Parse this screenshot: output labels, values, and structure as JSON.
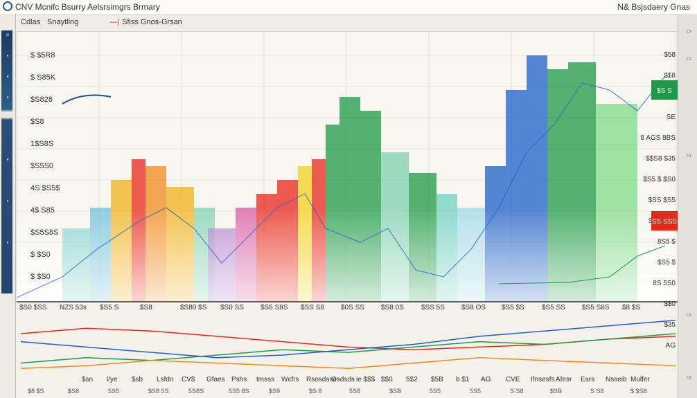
{
  "window": {
    "title": "CNV Mcnifc Bsurry Aelsrsimgrs Brmary",
    "title_right": "N& Bsjsdaery Gnas"
  },
  "toolbar": {
    "item1": "Cdlas",
    "item2": "Snaytling",
    "item3": "Sfiss Gnos-Grsan"
  },
  "colors": {
    "red": "#e8261a",
    "orange": "#f28a1c",
    "yellow": "#f4d21b",
    "green": "#1e9a46",
    "blue": "#1d5fc8",
    "purple": "#9a4fc2",
    "lightgreen": "#7fd98a",
    "teal": "#6fcfc0"
  },
  "chart_data": {
    "type": "area",
    "y_tick_labels": [
      "$ $5R8",
      "$ S85K",
      "$S828",
      "$S8",
      "1$S8S",
      "$S5S0",
      "4S $S5$",
      "4$ S85",
      "$S5S8S",
      "$ $S0",
      "$ $S0"
    ],
    "right_tick_labels": [
      "$58",
      "$$8",
      "$$S",
      "SE",
      "8 AGS 8BS",
      "$$S8 $35",
      "$S5 $ $S0",
      "$SS $S5",
      "SS3 $3S",
      "8S5 $",
      "$S5 $",
      "8S 5S0",
      "$$0",
      "$35",
      "AG"
    ],
    "right_badges": [
      "$S S",
      "SS SSS"
    ],
    "x_tick_labels_upper": [
      "$S0 $SS",
      "NZS 53s",
      "$S5 S",
      "$S8",
      "$S80 $S",
      "$S0 SS",
      "$S5 S8S",
      "$SS S8",
      "$0S SS",
      "$S8 0S",
      "$SS 5S",
      "$S8 OS",
      "$S5 $S",
      "$S5 SS",
      "$S5 S8S",
      "$8 $S"
    ],
    "x_tick_labels_lower": [
      "$8 $S",
      "$S8",
      "5S5",
      "$S8 5S",
      "5S8S",
      "5S5 8S",
      "$S9",
      "$S 8",
      "5S8",
      "$SB",
      "5S5",
      "5S5",
      "S S8",
      "$SB",
      "S S8",
      "$ $S8"
    ],
    "lower_labels": [
      "$sn",
      "l/ye",
      "$sb",
      "Lsfdn",
      "CV$",
      "Gfaes",
      "Pshs",
      "tmsss",
      "Wcfrs",
      "Rsosdsse",
      "Osdsds",
      "ie $$$",
      "$$0",
      "5$2",
      "$5B",
      "b $1",
      "AG",
      "CVE",
      "Ifnsesfs",
      "Afesr",
      "Esrs",
      "Nsseib",
      "Mulfer"
    ],
    "series": [
      {
        "name": "",
        "color": "#e8261a",
        "x": [
          0,
          1,
          2,
          3,
          4,
          5,
          6,
          7,
          8,
          9,
          10
        ],
        "values": [
          23,
          25,
          24,
          22,
          20,
          18,
          17,
          18,
          19,
          21,
          22
        ]
      },
      {
        "name": "",
        "color": "#1e9a46",
        "x": [
          0,
          1,
          2,
          3,
          4,
          5,
          6,
          7,
          8,
          9,
          10
        ],
        "values": [
          12,
          14,
          13,
          15,
          17,
          16,
          18,
          20,
          19,
          21,
          23
        ]
      },
      {
        "name": "",
        "color": "#1d5fc8",
        "x": [
          0,
          1,
          2,
          3,
          4,
          5,
          6,
          7,
          8,
          9,
          10
        ],
        "values": [
          20,
          18,
          16,
          14,
          15,
          17,
          19,
          22,
          24,
          26,
          28
        ]
      },
      {
        "name": "",
        "color": "#f28a1c",
        "x": [
          0,
          1,
          2,
          3,
          4,
          5,
          6,
          7,
          8,
          9,
          10
        ],
        "values": [
          10,
          11,
          13,
          12,
          11,
          10,
          12,
          14,
          13,
          12,
          11
        ]
      }
    ]
  }
}
